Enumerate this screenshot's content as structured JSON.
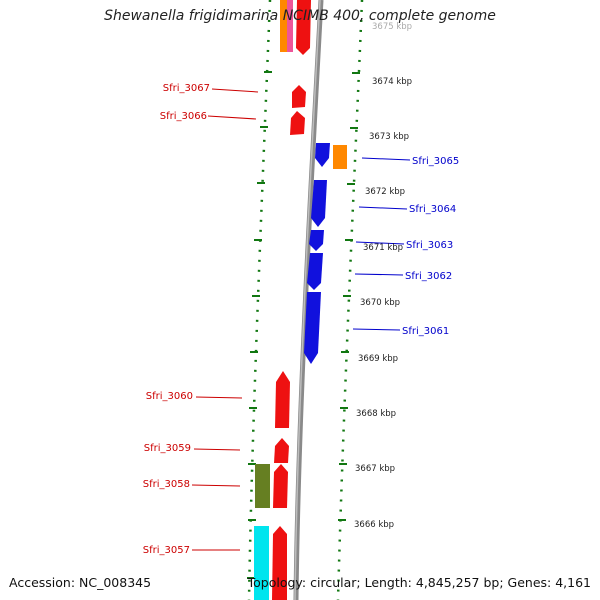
{
  "title": "Shewanella frigidimarina NCIMB 400, complete genome",
  "footer": {
    "accession": "Accession: NC_008345",
    "summary": "Topology: circular; Length: 4,845,257 bp; Genes: 4,161"
  },
  "colors": {
    "forward_strand": "#ee1111",
    "reverse_strand": "#1111dd",
    "orange": "#ff8800",
    "olive": "#667f22",
    "cyan": "#00e5ee",
    "backbone": "#777777",
    "ticks": "#117711"
  },
  "scale_labels": [
    "3675 kbp",
    "3674 kbp",
    "3673 kbp",
    "3672 kbp",
    "3671 kbp",
    "3670 kbp",
    "3669 kbp",
    "3668 kbp",
    "3667 kbp",
    "3666 kbp"
  ],
  "gene_labels": {
    "left": [
      "Sfri_3067",
      "Sfri_3066",
      "Sfri_3060",
      "Sfri_3059",
      "Sfri_3058",
      "Sfri_3057"
    ],
    "right": [
      "Sfri_3065",
      "Sfri_3064",
      "Sfri_3063",
      "Sfri_3062",
      "Sfri_3061"
    ]
  }
}
